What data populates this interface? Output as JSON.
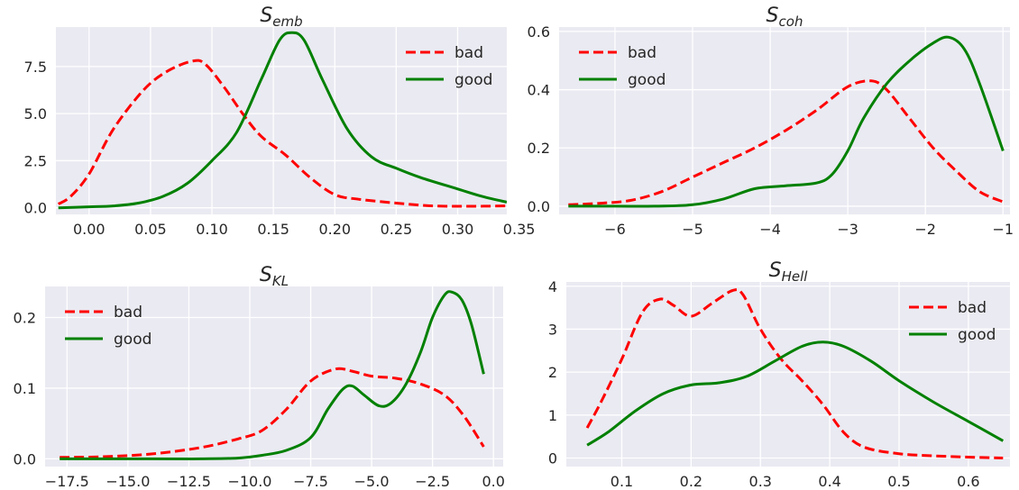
{
  "chart_data": [
    {
      "type": "line",
      "title": "S",
      "title_sub": "emb",
      "xlim": [
        -0.027,
        0.34
      ],
      "ylim": [
        -0.35,
        9.6
      ],
      "xticks": [
        0.0,
        0.05,
        0.1,
        0.15,
        0.2,
        0.25,
        0.3,
        0.35
      ],
      "xtick_labels": [
        "0.00",
        "0.05",
        "0.10",
        "0.15",
        "0.20",
        "0.25",
        "0.30",
        "0.35"
      ],
      "yticks": [
        0.0,
        2.5,
        5.0,
        7.5
      ],
      "ytick_labels": [
        "0.0",
        "2.5",
        "5.0",
        "7.5"
      ],
      "grid": true,
      "legend": "top-right",
      "series": [
        {
          "name": "bad",
          "color": "#ff0000",
          "dash": true,
          "x": [
            -0.025,
            -0.015,
            0.0,
            0.02,
            0.045,
            0.065,
            0.085,
            0.095,
            0.11,
            0.125,
            0.14,
            0.16,
            0.18,
            0.2,
            0.22,
            0.25,
            0.28,
            0.31,
            0.34
          ],
          "y": [
            0.2,
            0.6,
            1.8,
            4.2,
            6.3,
            7.3,
            7.8,
            7.6,
            6.4,
            5.0,
            3.8,
            2.8,
            1.6,
            0.7,
            0.45,
            0.25,
            0.1,
            0.08,
            0.1
          ]
        },
        {
          "name": "good",
          "color": "#008000",
          "dash": false,
          "x": [
            -0.025,
            0.0,
            0.02,
            0.04,
            0.06,
            0.08,
            0.1,
            0.12,
            0.14,
            0.155,
            0.165,
            0.175,
            0.19,
            0.21,
            0.23,
            0.25,
            0.27,
            0.3,
            0.32,
            0.34
          ],
          "y": [
            0.0,
            0.05,
            0.1,
            0.25,
            0.6,
            1.3,
            2.5,
            4.0,
            6.8,
            8.9,
            9.3,
            8.9,
            6.8,
            4.2,
            2.7,
            2.1,
            1.6,
            1.0,
            0.6,
            0.3
          ]
        }
      ]
    },
    {
      "type": "line",
      "title": "S",
      "title_sub": "coh",
      "xlim": [
        -6.72,
        -0.91
      ],
      "ylim": [
        -0.028,
        0.615
      ],
      "xticks": [
        -6,
        -5,
        -4,
        -3,
        -2,
        -1
      ],
      "xtick_labels": [
        "−6",
        "−5",
        "−4",
        "−3",
        "−2",
        "−1"
      ],
      "yticks": [
        0.0,
        0.2,
        0.4,
        0.6
      ],
      "ytick_labels": [
        "0.0",
        "0.2",
        "0.4",
        "0.6"
      ],
      "grid": true,
      "legend": "top-left",
      "series": [
        {
          "name": "bad",
          "color": "#ff0000",
          "dash": true,
          "x": [
            -6.6,
            -6.2,
            -5.8,
            -5.4,
            -5.0,
            -4.6,
            -4.2,
            -3.8,
            -3.4,
            -3.0,
            -2.7,
            -2.5,
            -2.2,
            -1.9,
            -1.6,
            -1.3,
            -1.0
          ],
          "y": [
            0.005,
            0.01,
            0.02,
            0.05,
            0.1,
            0.15,
            0.2,
            0.26,
            0.33,
            0.41,
            0.43,
            0.4,
            0.3,
            0.2,
            0.12,
            0.05,
            0.015
          ]
        },
        {
          "name": "good",
          "color": "#008000",
          "dash": false,
          "x": [
            -6.6,
            -6.0,
            -5.5,
            -5.0,
            -4.6,
            -4.2,
            -3.8,
            -3.4,
            -3.2,
            -3.0,
            -2.8,
            -2.5,
            -2.2,
            -1.9,
            -1.7,
            -1.5,
            -1.3,
            -1.0
          ],
          "y": [
            0.0,
            0.0,
            0.0,
            0.005,
            0.025,
            0.06,
            0.07,
            0.08,
            0.11,
            0.19,
            0.3,
            0.42,
            0.5,
            0.56,
            0.58,
            0.54,
            0.42,
            0.19
          ]
        }
      ]
    },
    {
      "type": "line",
      "title": "S",
      "title_sub": "KL",
      "xlim": [
        -18.4,
        0.4
      ],
      "ylim": [
        -0.011,
        0.244
      ],
      "xticks": [
        -17.5,
        -15.0,
        -12.5,
        -10.0,
        -7.5,
        -5.0,
        -2.5,
        0.0
      ],
      "xtick_labels": [
        "−17.5",
        "−15.0",
        "−12.5",
        "−10.0",
        "−7.5",
        "−5.0",
        "−2.5",
        "0.0"
      ],
      "yticks": [
        0.0,
        0.1,
        0.2
      ],
      "ytick_labels": [
        "0.0",
        "0.1",
        "0.2"
      ],
      "grid": true,
      "legend": "top-left",
      "series": [
        {
          "name": "bad",
          "color": "#ff0000",
          "dash": true,
          "x": [
            -17.8,
            -16.0,
            -14.0,
            -12.0,
            -10.5,
            -9.5,
            -8.5,
            -7.5,
            -6.5,
            -5.8,
            -5.0,
            -4.0,
            -3.0,
            -2.0,
            -1.2,
            -0.4
          ],
          "y": [
            0.002,
            0.003,
            0.007,
            0.016,
            0.028,
            0.04,
            0.07,
            0.11,
            0.127,
            0.124,
            0.117,
            0.114,
            0.106,
            0.09,
            0.06,
            0.017
          ]
        },
        {
          "name": "good",
          "color": "#008000",
          "dash": false,
          "x": [
            -17.8,
            -14.0,
            -12.0,
            -10.5,
            -9.5,
            -8.5,
            -7.5,
            -6.8,
            -6.2,
            -5.8,
            -5.3,
            -4.7,
            -4.2,
            -3.6,
            -3.0,
            -2.5,
            -2.0,
            -1.7,
            -1.3,
            -0.9,
            -0.4
          ],
          "y": [
            0.0,
            0.0,
            0.0,
            0.001,
            0.005,
            0.012,
            0.03,
            0.07,
            0.098,
            0.103,
            0.09,
            0.075,
            0.079,
            0.105,
            0.15,
            0.2,
            0.232,
            0.236,
            0.225,
            0.19,
            0.12
          ]
        }
      ]
    },
    {
      "type": "line",
      "title": "S",
      "title_sub": "Hell",
      "xlim": [
        0.02,
        0.66
      ],
      "ylim": [
        -0.2,
        4.1
      ],
      "xticks": [
        0.1,
        0.2,
        0.3,
        0.4,
        0.5,
        0.6
      ],
      "xtick_labels": [
        "0.1",
        "0.2",
        "0.3",
        "0.4",
        "0.5",
        "0.6"
      ],
      "yticks": [
        0,
        1,
        2,
        3,
        4
      ],
      "ytick_labels": [
        "0",
        "1",
        "2",
        "3",
        "4"
      ],
      "grid": true,
      "legend": "top-right",
      "series": [
        {
          "name": "bad",
          "color": "#ff0000",
          "dash": true,
          "x": [
            0.05,
            0.07,
            0.1,
            0.13,
            0.155,
            0.175,
            0.2,
            0.23,
            0.26,
            0.275,
            0.3,
            0.33,
            0.36,
            0.39,
            0.42,
            0.45,
            0.5,
            0.55,
            0.6,
            0.65
          ],
          "y": [
            0.7,
            1.3,
            2.3,
            3.4,
            3.7,
            3.55,
            3.3,
            3.6,
            3.9,
            3.8,
            3.0,
            2.3,
            1.8,
            1.25,
            0.6,
            0.25,
            0.1,
            0.05,
            0.02,
            0.0
          ]
        },
        {
          "name": "good",
          "color": "#008000",
          "dash": false,
          "x": [
            0.05,
            0.08,
            0.12,
            0.16,
            0.2,
            0.24,
            0.28,
            0.32,
            0.36,
            0.39,
            0.42,
            0.46,
            0.5,
            0.55,
            0.6,
            0.65
          ],
          "y": [
            0.3,
            0.6,
            1.1,
            1.5,
            1.7,
            1.75,
            1.9,
            2.25,
            2.6,
            2.7,
            2.6,
            2.25,
            1.8,
            1.3,
            0.85,
            0.4
          ]
        }
      ]
    }
  ]
}
